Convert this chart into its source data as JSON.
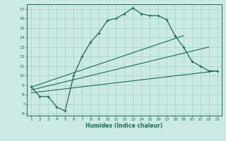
{
  "xlabel": "Humidex (Indice chaleur)",
  "ylabel": "",
  "bg_color": "#cceae5",
  "grid_color": "#aad4ce",
  "line_color": "#1a6b5a",
  "x_ticks": [
    1,
    2,
    3,
    4,
    5,
    6,
    7,
    8,
    9,
    10,
    11,
    12,
    13,
    14,
    15,
    16,
    17,
    18,
    19,
    20,
    21,
    22,
    23
  ],
  "y_ticks": [
    6,
    7,
    8,
    9,
    10,
    11,
    12,
    13,
    14,
    15,
    16,
    17
  ],
  "ylim": [
    5.8,
    17.5
  ],
  "xlim": [
    0.5,
    23.5
  ],
  "line1_x": [
    1,
    2,
    3,
    4,
    5,
    6,
    7,
    8,
    9,
    10,
    11,
    12,
    13,
    14,
    15,
    16,
    17,
    18,
    19,
    20,
    21,
    22,
    23
  ],
  "line1_y": [
    8.8,
    7.8,
    7.8,
    6.7,
    6.3,
    10.0,
    12.0,
    13.5,
    14.5,
    15.8,
    16.0,
    16.5,
    17.1,
    16.5,
    16.3,
    16.3,
    15.9,
    14.2,
    13.0,
    11.5,
    11.0,
    10.5,
    10.5
  ],
  "line2_x": [
    1,
    19
  ],
  "line2_y": [
    8.8,
    14.2
  ],
  "line3_x": [
    1,
    22
  ],
  "line3_y": [
    8.5,
    13.0
  ],
  "line4_x": [
    1,
    23
  ],
  "line4_y": [
    8.2,
    10.5
  ]
}
